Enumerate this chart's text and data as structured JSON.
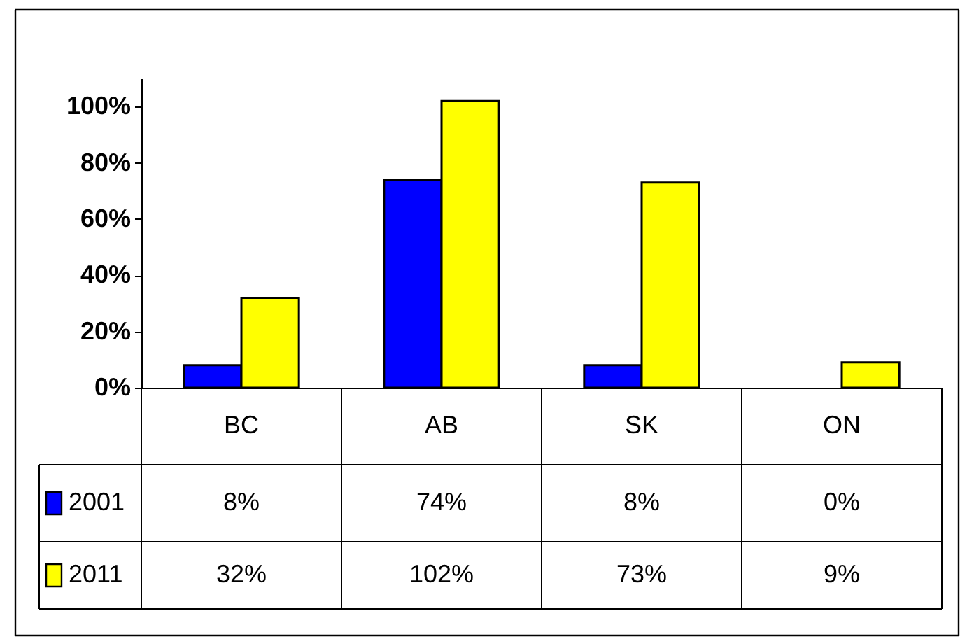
{
  "chart_data": {
    "type": "bar",
    "categories": [
      "BC",
      "AB",
      "SK",
      "ON"
    ],
    "series": [
      {
        "name": "2001",
        "color": "#0000ff",
        "values": [
          8,
          74,
          8,
          0
        ],
        "value_labels": [
          "8%",
          "74%",
          "8%",
          "0%"
        ]
      },
      {
        "name": "2011",
        "color": "#ffff00",
        "values": [
          32,
          102,
          73,
          9
        ],
        "value_labels": [
          "32%",
          "102%",
          "73%",
          "9%"
        ]
      }
    ],
    "ylim": [
      0,
      110
    ],
    "yticks": [
      {
        "value": 0,
        "label": "0%"
      },
      {
        "value": 20,
        "label": "20%"
      },
      {
        "value": 40,
        "label": "40%"
      },
      {
        "value": 60,
        "label": "60%"
      },
      {
        "value": 80,
        "label": "80%"
      },
      {
        "value": 100,
        "label": "100%"
      }
    ],
    "legend": "bottom left"
  }
}
